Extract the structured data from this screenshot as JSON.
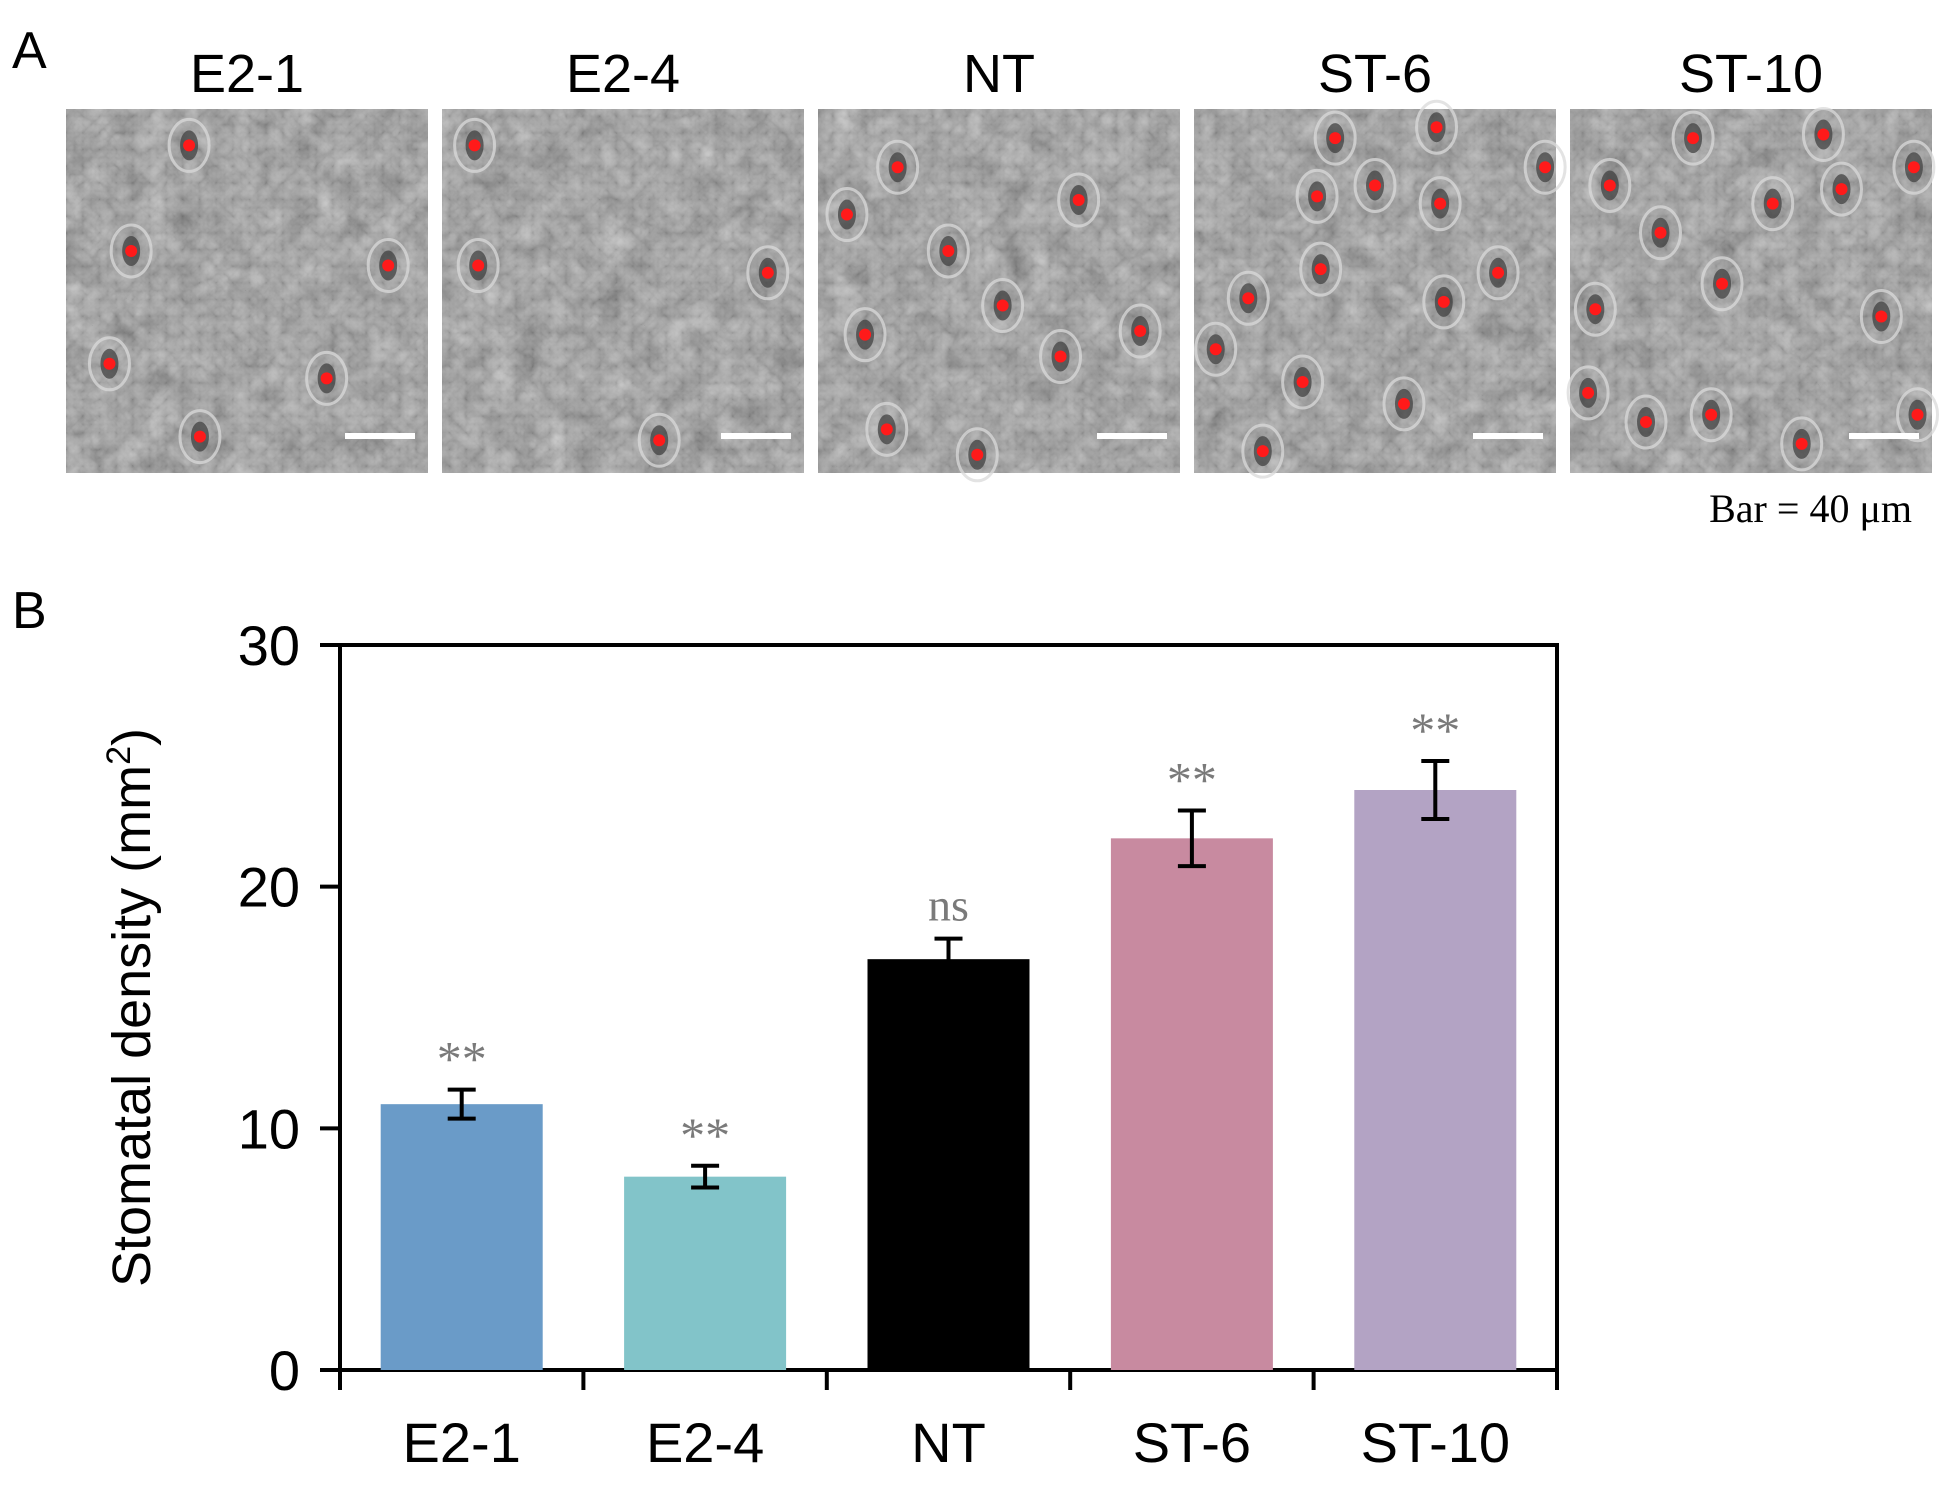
{
  "panel_a": {
    "letter": "A",
    "scale_bar_label": "Bar = 40 μm",
    "images": [
      {
        "label": "E2-1",
        "stomata": [
          [
            0.34,
            0.1
          ],
          [
            0.18,
            0.39
          ],
          [
            0.89,
            0.43
          ],
          [
            0.12,
            0.7
          ],
          [
            0.72,
            0.74
          ],
          [
            0.37,
            0.9
          ]
        ]
      },
      {
        "label": "E2-4",
        "stomata": [
          [
            0.09,
            0.1
          ],
          [
            0.1,
            0.43
          ],
          [
            0.9,
            0.45
          ],
          [
            0.6,
            0.91
          ]
        ]
      },
      {
        "label": "NT",
        "stomata": [
          [
            0.22,
            0.16
          ],
          [
            0.72,
            0.25
          ],
          [
            0.08,
            0.29
          ],
          [
            0.36,
            0.39
          ],
          [
            0.51,
            0.54
          ],
          [
            0.89,
            0.61
          ],
          [
            0.13,
            0.62
          ],
          [
            0.67,
            0.68
          ],
          [
            0.19,
            0.88
          ],
          [
            0.44,
            0.95
          ]
        ]
      },
      {
        "label": "ST-6",
        "stomata": [
          [
            0.39,
            0.08
          ],
          [
            0.67,
            0.05
          ],
          [
            0.97,
            0.16
          ],
          [
            0.34,
            0.24
          ],
          [
            0.5,
            0.21
          ],
          [
            0.68,
            0.26
          ],
          [
            0.35,
            0.44
          ],
          [
            0.84,
            0.45
          ],
          [
            0.15,
            0.52
          ],
          [
            0.69,
            0.53
          ],
          [
            0.06,
            0.66
          ],
          [
            0.3,
            0.75
          ],
          [
            0.58,
            0.81
          ],
          [
            0.19,
            0.94
          ]
        ]
      },
      {
        "label": "ST-10",
        "stomata": [
          [
            0.34,
            0.08
          ],
          [
            0.7,
            0.07
          ],
          [
            0.95,
            0.16
          ],
          [
            0.11,
            0.21
          ],
          [
            0.56,
            0.26
          ],
          [
            0.75,
            0.22
          ],
          [
            0.25,
            0.34
          ],
          [
            0.42,
            0.48
          ],
          [
            0.07,
            0.55
          ],
          [
            0.86,
            0.57
          ],
          [
            0.05,
            0.78
          ],
          [
            0.21,
            0.86
          ],
          [
            0.39,
            0.84
          ],
          [
            0.96,
            0.84
          ],
          [
            0.64,
            0.92
          ]
        ]
      }
    ]
  },
  "panel_b": {
    "letter": "B"
  },
  "chart_data": {
    "type": "bar",
    "title": "",
    "xlabel": "",
    "ylabel": "Stomatal density (mm",
    "ylabel_superscript": "2",
    "ylabel_close": ")",
    "ylim": [
      0,
      30
    ],
    "yticks": [
      0,
      10,
      20,
      30
    ],
    "grid": false,
    "legend": "none",
    "categories": [
      "E2-1",
      "E2-4",
      "NT",
      "ST-6",
      "ST-10"
    ],
    "values": [
      11,
      8,
      17,
      22,
      24
    ],
    "errors": [
      0.6,
      0.45,
      0.85,
      1.15,
      1.2
    ],
    "significance": [
      "**",
      "**",
      "ns",
      "**",
      "**"
    ],
    "colors": [
      "#6a9bc8",
      "#82c4c9",
      "#000000",
      "#c88aa0",
      "#b3a3c4"
    ]
  }
}
